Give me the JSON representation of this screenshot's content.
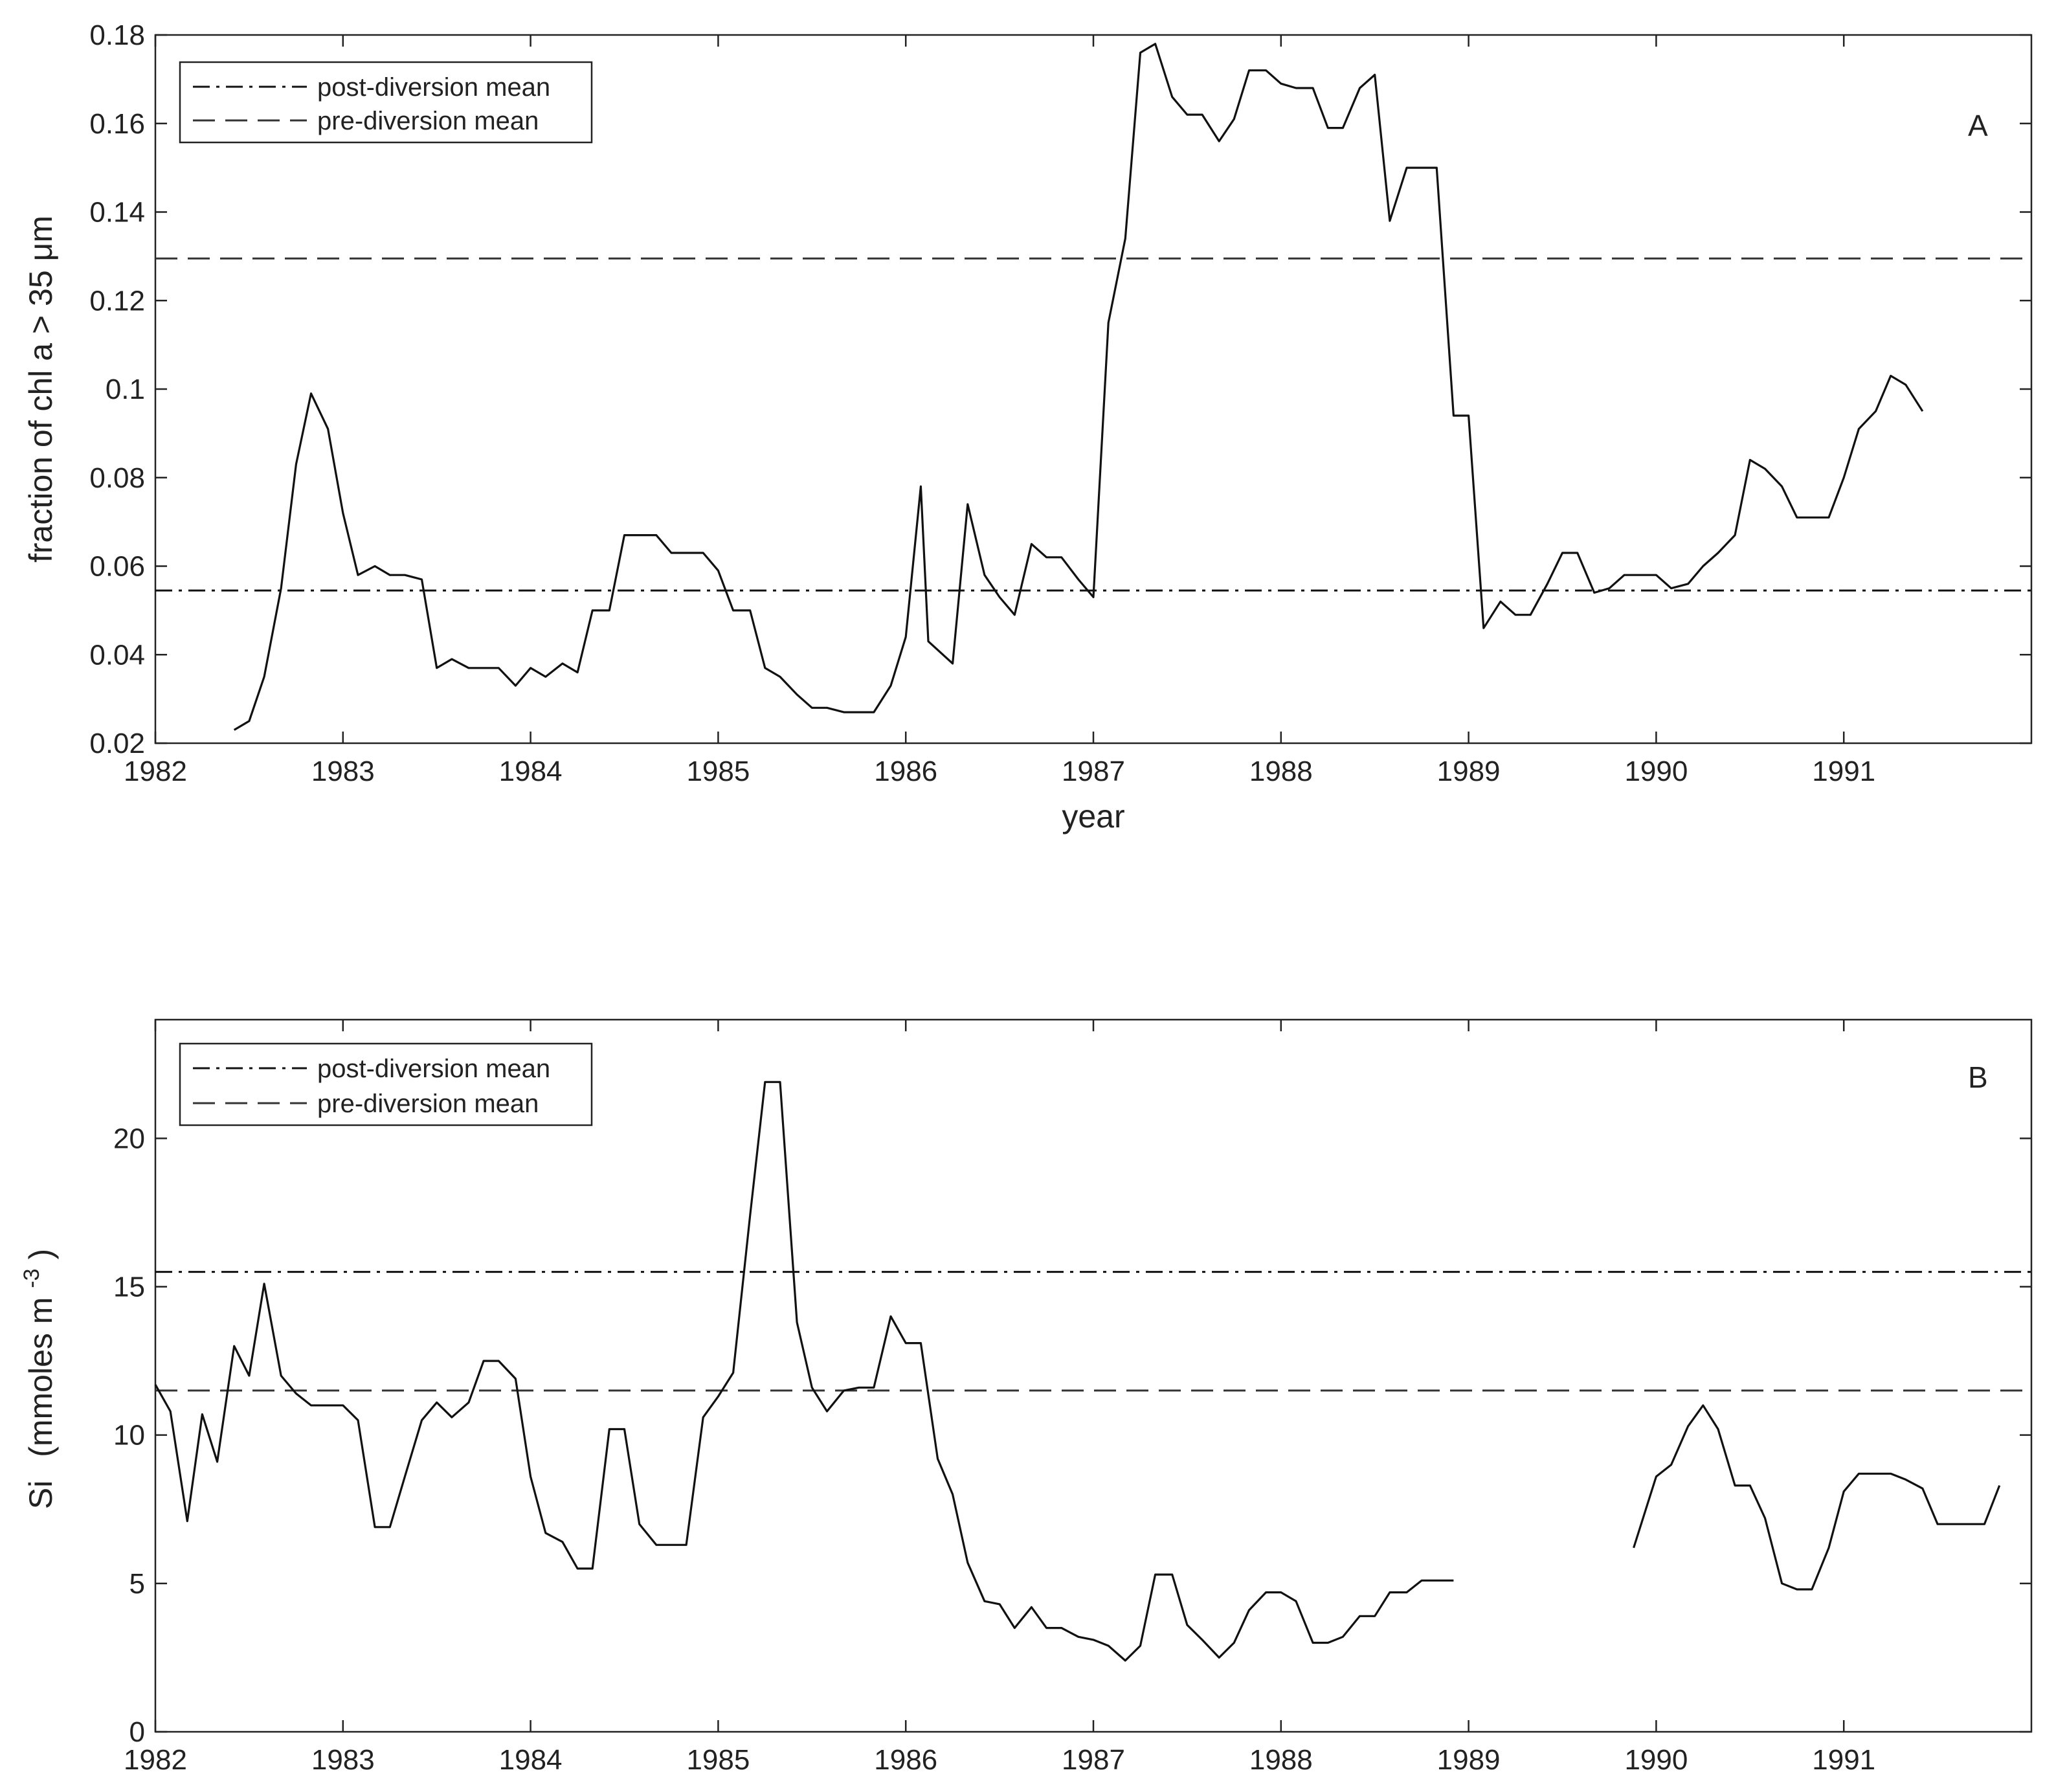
{
  "chart_data": [
    {
      "type": "line",
      "panel": "A",
      "xlabel": "year",
      "ylabel": "fraction of chl a > 35 μm",
      "xlim": [
        1982,
        1992
      ],
      "ylim": [
        0.02,
        0.18
      ],
      "xticks": [
        1982,
        1983,
        1984,
        1985,
        1986,
        1987,
        1988,
        1989,
        1990,
        1991
      ],
      "yticks": [
        0.02,
        0.04,
        0.06,
        0.08,
        0.1,
        0.12,
        0.14,
        0.16,
        0.18
      ],
      "ytick_labels": [
        "0.02",
        "0.04",
        "0.06",
        "0.08",
        "0.1",
        "0.12",
        "0.14",
        "0.16",
        "0.18"
      ],
      "legend": {
        "position": "top-left",
        "entries": [
          {
            "label": "post-diversion mean",
            "style": "dash-dot"
          },
          {
            "label": "pre-diversion mean",
            "style": "dashed"
          }
        ]
      },
      "reference_lines": {
        "post_diversion_mean": 0.0545,
        "pre_diversion_mean": 0.1295
      },
      "series": [
        {
          "style": "solid",
          "segments": [
            [
              [
                1982.42,
                0.023
              ],
              [
                1982.5,
                0.025
              ],
              [
                1982.58,
                0.035
              ],
              [
                1982.67,
                0.055
              ],
              [
                1982.75,
                0.083
              ],
              [
                1982.83,
                0.099
              ],
              [
                1982.92,
                0.091
              ],
              [
                1983.0,
                0.072
              ],
              [
                1983.08,
                0.058
              ],
              [
                1983.17,
                0.06
              ],
              [
                1983.25,
                0.058
              ],
              [
                1983.33,
                0.058
              ],
              [
                1983.42,
                0.057
              ],
              [
                1983.5,
                0.037
              ],
              [
                1983.58,
                0.039
              ],
              [
                1983.67,
                0.037
              ],
              [
                1983.75,
                0.037
              ],
              [
                1983.83,
                0.037
              ],
              [
                1983.92,
                0.033
              ],
              [
                1984.0,
                0.037
              ],
              [
                1984.08,
                0.035
              ],
              [
                1984.17,
                0.038
              ],
              [
                1984.25,
                0.036
              ],
              [
                1984.33,
                0.05
              ],
              [
                1984.42,
                0.05
              ],
              [
                1984.5,
                0.067
              ],
              [
                1984.58,
                0.067
              ],
              [
                1984.67,
                0.067
              ],
              [
                1984.75,
                0.063
              ],
              [
                1984.83,
                0.063
              ],
              [
                1984.92,
                0.063
              ],
              [
                1985.0,
                0.059
              ],
              [
                1985.08,
                0.05
              ],
              [
                1985.17,
                0.05
              ],
              [
                1985.25,
                0.037
              ],
              [
                1985.33,
                0.035
              ],
              [
                1985.42,
                0.031
              ],
              [
                1985.5,
                0.028
              ],
              [
                1985.58,
                0.028
              ],
              [
                1985.67,
                0.027
              ],
              [
                1985.75,
                0.027
              ],
              [
                1985.83,
                0.027
              ],
              [
                1985.92,
                0.033
              ],
              [
                1986.0,
                0.044
              ],
              [
                1986.08,
                0.078
              ],
              [
                1986.12,
                0.043
              ],
              [
                1986.25,
                0.038
              ],
              [
                1986.33,
                0.074
              ],
              [
                1986.42,
                0.058
              ],
              [
                1986.5,
                0.053
              ],
              [
                1986.58,
                0.049
              ],
              [
                1986.67,
                0.065
              ],
              [
                1986.75,
                0.062
              ],
              [
                1986.83,
                0.062
              ],
              [
                1986.92,
                0.057
              ],
              [
                1987.0,
                0.053
              ],
              [
                1987.08,
                0.115
              ],
              [
                1987.17,
                0.134
              ],
              [
                1987.25,
                0.176
              ],
              [
                1987.33,
                0.178
              ],
              [
                1987.42,
                0.166
              ],
              [
                1987.5,
                0.162
              ],
              [
                1987.58,
                0.162
              ],
              [
                1987.67,
                0.156
              ],
              [
                1987.75,
                0.161
              ],
              [
                1987.83,
                0.172
              ],
              [
                1987.92,
                0.172
              ],
              [
                1988.0,
                0.169
              ],
              [
                1988.08,
                0.168
              ],
              [
                1988.17,
                0.168
              ],
              [
                1988.25,
                0.159
              ],
              [
                1988.33,
                0.159
              ],
              [
                1988.42,
                0.168
              ],
              [
                1988.5,
                0.171
              ],
              [
                1988.58,
                0.138
              ],
              [
                1988.67,
                0.15
              ],
              [
                1988.75,
                0.15
              ],
              [
                1988.83,
                0.15
              ],
              [
                1988.92,
                0.094
              ],
              [
                1989.0,
                0.094
              ],
              [
                1989.08,
                0.046
              ],
              [
                1989.17,
                0.052
              ],
              [
                1989.25,
                0.049
              ],
              [
                1989.33,
                0.049
              ],
              [
                1989.42,
                0.056
              ],
              [
                1989.5,
                0.063
              ],
              [
                1989.58,
                0.063
              ],
              [
                1989.67,
                0.054
              ],
              [
                1989.75,
                0.055
              ],
              [
                1989.83,
                0.058
              ],
              [
                1989.92,
                0.058
              ],
              [
                1990.0,
                0.058
              ],
              [
                1990.08,
                0.055
              ],
              [
                1990.17,
                0.056
              ],
              [
                1990.25,
                0.06
              ],
              [
                1990.33,
                0.063
              ],
              [
                1990.42,
                0.067
              ],
              [
                1990.5,
                0.084
              ],
              [
                1990.58,
                0.082
              ],
              [
                1990.67,
                0.078
              ],
              [
                1990.75,
                0.071
              ],
              [
                1990.83,
                0.071
              ],
              [
                1990.92,
                0.071
              ],
              [
                1991.0,
                0.08
              ],
              [
                1991.08,
                0.091
              ],
              [
                1991.17,
                0.095
              ],
              [
                1991.25,
                0.103
              ],
              [
                1991.33,
                0.101
              ],
              [
                1991.42,
                0.095
              ]
            ]
          ]
        }
      ]
    },
    {
      "type": "line",
      "panel": "B",
      "ylabel_main": "Si",
      "ylabel_unit": "(mmoles m",
      "ylabel_exp": "-3",
      "ylabel_close": ")",
      "xlim": [
        1982,
        1992
      ],
      "ylim": [
        0,
        24
      ],
      "xticks": [
        1982,
        1983,
        1984,
        1985,
        1986,
        1987,
        1988,
        1989,
        1990,
        1991
      ],
      "yticks": [
        0,
        5,
        10,
        15,
        20
      ],
      "legend": {
        "position": "top-left",
        "entries": [
          {
            "label": "post-diversion mean",
            "style": "dash-dot"
          },
          {
            "label": "pre-diversion mean",
            "style": "dashed"
          }
        ]
      },
      "reference_lines": {
        "post_diversion_mean": 15.5,
        "pre_diversion_mean": 11.5
      },
      "series": [
        {
          "style": "solid",
          "segments": [
            [
              [
                1982.0,
                11.7
              ],
              [
                1982.08,
                10.8
              ],
              [
                1982.17,
                7.1
              ],
              [
                1982.25,
                10.7
              ],
              [
                1982.33,
                9.1
              ],
              [
                1982.42,
                13.0
              ],
              [
                1982.5,
                12.0
              ],
              [
                1982.58,
                15.1
              ],
              [
                1982.67,
                12.0
              ],
              [
                1982.75,
                11.4
              ],
              [
                1982.83,
                11.0
              ],
              [
                1982.92,
                11.0
              ],
              [
                1983.0,
                11.0
              ],
              [
                1983.08,
                10.5
              ],
              [
                1983.17,
                6.9
              ],
              [
                1983.25,
                6.9
              ],
              [
                1983.33,
                8.6
              ],
              [
                1983.42,
                10.5
              ],
              [
                1983.5,
                11.1
              ],
              [
                1983.58,
                10.6
              ],
              [
                1983.67,
                11.1
              ],
              [
                1983.75,
                12.5
              ],
              [
                1983.83,
                12.5
              ],
              [
                1983.92,
                11.9
              ],
              [
                1984.0,
                8.6
              ],
              [
                1984.08,
                6.7
              ],
              [
                1984.17,
                6.4
              ],
              [
                1984.25,
                5.5
              ],
              [
                1984.33,
                5.5
              ],
              [
                1984.42,
                10.2
              ],
              [
                1984.5,
                10.2
              ],
              [
                1984.58,
                7.0
              ],
              [
                1984.67,
                6.3
              ],
              [
                1984.75,
                6.3
              ],
              [
                1984.83,
                6.3
              ],
              [
                1984.92,
                10.6
              ],
              [
                1985.0,
                11.3
              ],
              [
                1985.08,
                12.1
              ],
              [
                1985.17,
                17.4
              ],
              [
                1985.25,
                21.9
              ],
              [
                1985.33,
                21.9
              ],
              [
                1985.42,
                13.8
              ],
              [
                1985.5,
                11.6
              ],
              [
                1985.58,
                10.8
              ],
              [
                1985.67,
                11.5
              ],
              [
                1985.75,
                11.6
              ],
              [
                1985.83,
                11.6
              ],
              [
                1985.92,
                14.0
              ],
              [
                1986.0,
                13.1
              ],
              [
                1986.08,
                13.1
              ],
              [
                1986.17,
                9.2
              ],
              [
                1986.25,
                8.0
              ],
              [
                1986.33,
                5.7
              ],
              [
                1986.42,
                4.4
              ],
              [
                1986.5,
                4.3
              ],
              [
                1986.58,
                3.5
              ],
              [
                1986.67,
                4.2
              ],
              [
                1986.75,
                3.5
              ],
              [
                1986.83,
                3.5
              ],
              [
                1986.92,
                3.2
              ],
              [
                1987.0,
                3.1
              ],
              [
                1987.08,
                2.9
              ],
              [
                1987.17,
                2.4
              ],
              [
                1987.25,
                2.9
              ],
              [
                1987.33,
                5.3
              ],
              [
                1987.42,
                5.3
              ],
              [
                1987.5,
                3.6
              ],
              [
                1987.58,
                3.1
              ],
              [
                1987.67,
                2.5
              ],
              [
                1987.75,
                3.0
              ],
              [
                1987.83,
                4.1
              ],
              [
                1987.92,
                4.7
              ],
              [
                1988.0,
                4.7
              ],
              [
                1988.08,
                4.4
              ],
              [
                1988.17,
                3.0
              ],
              [
                1988.25,
                3.0
              ],
              [
                1988.33,
                3.2
              ],
              [
                1988.42,
                3.9
              ],
              [
                1988.5,
                3.9
              ],
              [
                1988.58,
                4.7
              ],
              [
                1988.67,
                4.7
              ],
              [
                1988.75,
                5.1
              ],
              [
                1988.83,
                5.1
              ],
              [
                1988.92,
                5.1
              ]
            ],
            [
              [
                1989.88,
                6.2
              ],
              [
                1990.0,
                8.6
              ],
              [
                1990.08,
                9.0
              ],
              [
                1990.17,
                10.3
              ],
              [
                1990.25,
                11.0
              ],
              [
                1990.33,
                10.2
              ],
              [
                1990.42,
                8.3
              ],
              [
                1990.5,
                8.3
              ],
              [
                1990.58,
                7.2
              ],
              [
                1990.67,
                5.0
              ],
              [
                1990.75,
                4.8
              ],
              [
                1990.83,
                4.8
              ],
              [
                1990.92,
                6.2
              ],
              [
                1991.0,
                8.1
              ],
              [
                1991.08,
                8.7
              ],
              [
                1991.17,
                8.7
              ],
              [
                1991.25,
                8.7
              ],
              [
                1991.33,
                8.5
              ],
              [
                1991.42,
                8.2
              ],
              [
                1991.5,
                7.0
              ],
              [
                1991.58,
                7.0
              ],
              [
                1991.67,
                7.0
              ],
              [
                1991.75,
                7.0
              ],
              [
                1991.83,
                8.3
              ]
            ]
          ]
        }
      ]
    }
  ]
}
